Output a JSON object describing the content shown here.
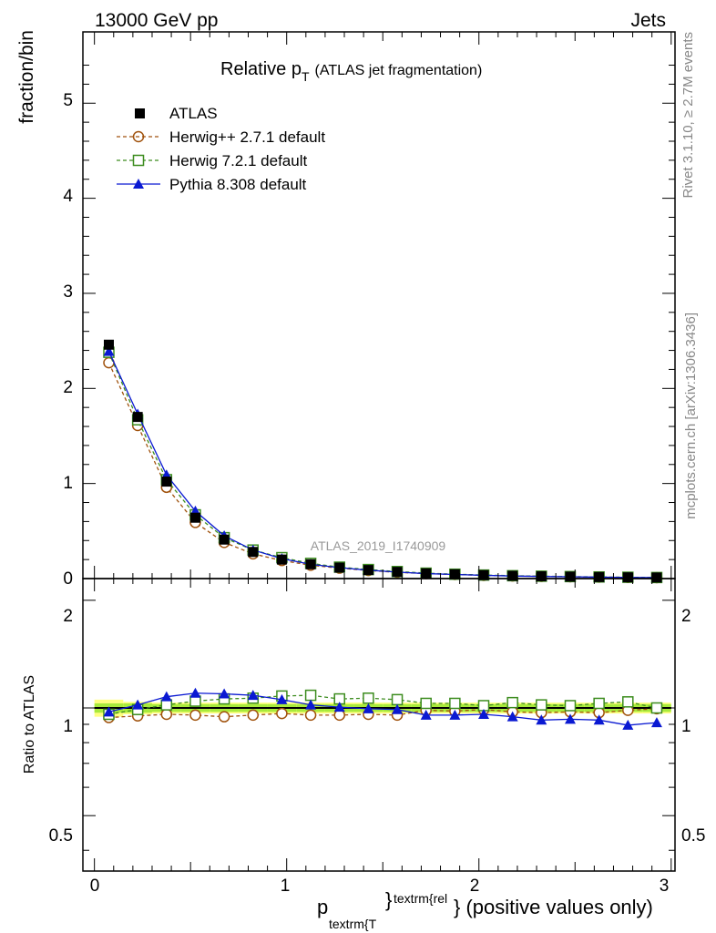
{
  "header": {
    "energy": "13000 GeV pp",
    "process": "Jets",
    "side_rivet": "Rivet 3.1.10, ≥ 2.7M events",
    "side_mcplots": "mcplots.cern.ch [arXiv:1306.3436]"
  },
  "main_panel": {
    "title_main": "Relative p",
    "title_sub": "T",
    "title_note": "(ATLAS jet fragmentation)",
    "ylabel": "fraction/bin",
    "watermark": "ATLAS_2019_I1740909",
    "yticks": [
      "0",
      "1",
      "2",
      "3",
      "4",
      "5"
    ]
  },
  "ratio_panel": {
    "ylabel": "Ratio to ATLAS",
    "yticks": [
      "0.5",
      "1",
      "2"
    ],
    "yticks_right": [
      "0.5",
      "1",
      "2"
    ]
  },
  "xaxis": {
    "ticks": [
      "0",
      "1",
      "2",
      "3"
    ],
    "label_p": "p",
    "label_sub": "textrm{T",
    "label_sup": "textrm{rel",
    "label_rest": "} (positive values only)",
    "label_brace": "}"
  },
  "legend": [
    {
      "label": "ATLAS",
      "color": "#000000",
      "marker": "filled-square",
      "line": "none"
    },
    {
      "label": "Herwig++ 2.7.1 default",
      "color": "#a0520d",
      "marker": "open-circle",
      "line": "dashed"
    },
    {
      "label": "Herwig 7.2.1 default",
      "color": "#3c8c1e",
      "marker": "open-square",
      "line": "dashed"
    },
    {
      "label": "Pythia 8.308 default",
      "color": "#0a19d2",
      "marker": "filled-triangle",
      "line": "solid"
    }
  ],
  "chart_data": {
    "type": "line",
    "x": [
      0.075,
      0.225,
      0.375,
      0.525,
      0.675,
      0.825,
      0.975,
      1.125,
      1.275,
      1.425,
      1.575,
      1.725,
      1.875,
      2.025,
      2.175,
      2.325,
      2.475,
      2.625,
      2.775,
      2.925
    ],
    "xlim": [
      -0.06,
      3.02
    ],
    "ylim": [
      0,
      5.75
    ],
    "ratio_ylim": [
      0.35,
      2.3
    ],
    "ratio_scale": "log",
    "series": [
      {
        "name": "ATLAS",
        "values": [
          2.46,
          1.7,
          1.02,
          0.64,
          0.41,
          0.28,
          0.2,
          0.15,
          0.115,
          0.09,
          0.07,
          0.055,
          0.045,
          0.036,
          0.029,
          0.024,
          0.02,
          0.016,
          0.013,
          0.011
        ]
      },
      {
        "name": "Herwig++ 2.7.1 default",
        "values": [
          2.27,
          1.61,
          0.96,
          0.59,
          0.38,
          0.26,
          0.19,
          0.14,
          0.11,
          0.085,
          0.066,
          0.052,
          0.043,
          0.034,
          0.028,
          0.023,
          0.019,
          0.015,
          0.012,
          0.01
        ]
      },
      {
        "name": "Herwig 7.2.1 default",
        "values": [
          2.38,
          1.67,
          1.04,
          0.67,
          0.43,
          0.3,
          0.22,
          0.16,
          0.12,
          0.095,
          0.074,
          0.057,
          0.046,
          0.037,
          0.03,
          0.025,
          0.021,
          0.017,
          0.014,
          0.011
        ]
      },
      {
        "name": "Pythia 8.308 default",
        "values": [
          2.39,
          1.73,
          1.09,
          0.71,
          0.45,
          0.3,
          0.21,
          0.15,
          0.115,
          0.088,
          0.068,
          0.052,
          0.043,
          0.034,
          0.027,
          0.022,
          0.019,
          0.015,
          0.012,
          0.01
        ]
      }
    ],
    "ratio_series": [
      {
        "name": "Herwig++ 2.7.1 default",
        "values": [
          0.94,
          0.95,
          0.96,
          0.955,
          0.945,
          0.955,
          0.965,
          0.955,
          0.955,
          0.96,
          0.955,
          0.985,
          0.98,
          0.99,
          0.975,
          0.97,
          0.975,
          0.97,
          0.985,
          0.995
        ]
      },
      {
        "name": "Herwig 7.2.1 default",
        "values": [
          0.96,
          0.99,
          1.02,
          1.045,
          1.06,
          1.065,
          1.08,
          1.085,
          1.06,
          1.065,
          1.055,
          1.03,
          1.03,
          1.015,
          1.035,
          1.02,
          1.015,
          1.03,
          1.04,
          1.0
        ]
      },
      {
        "name": "Pythia 8.308 default",
        "values": [
          0.975,
          1.02,
          1.075,
          1.1,
          1.095,
          1.085,
          1.055,
          1.02,
          1.005,
          0.995,
          0.99,
          0.955,
          0.955,
          0.96,
          0.945,
          0.925,
          0.93,
          0.925,
          0.895,
          0.91
        ]
      }
    ],
    "band_edges": [
      0.0,
      0.15,
      0.3,
      0.45,
      0.6,
      0.75,
      0.9,
      1.05,
      1.2,
      1.35,
      1.5,
      1.65,
      1.8,
      1.95,
      2.1,
      2.25,
      2.4,
      2.55,
      2.7,
      2.85,
      3.0
    ],
    "stat_band": [
      0.03,
      0.03,
      0.025,
      0.025,
      0.025,
      0.025,
      0.025,
      0.025,
      0.025,
      0.025,
      0.025,
      0.025,
      0.025,
      0.025,
      0.025,
      0.025,
      0.025,
      0.025,
      0.025,
      0.025
    ],
    "total_band": [
      0.055,
      0.04,
      0.035,
      0.035,
      0.035,
      0.035,
      0.035,
      0.035,
      0.035,
      0.035,
      0.035,
      0.035,
      0.035,
      0.035,
      0.035,
      0.035,
      0.035,
      0.035,
      0.035,
      0.035
    ],
    "band_colors": {
      "stat": "#a8ea3c",
      "total": "#ffff80"
    }
  }
}
